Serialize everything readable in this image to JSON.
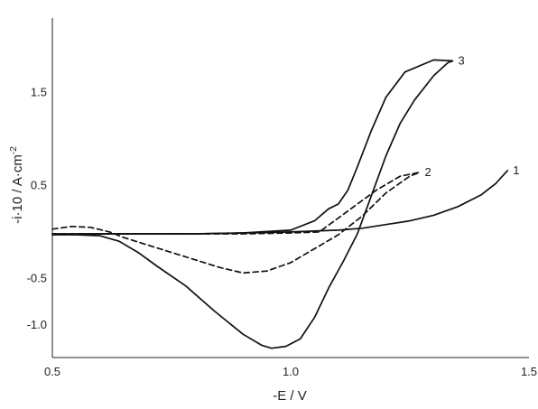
{
  "chart_data": {
    "type": "line",
    "title": "",
    "xlabel": "-E / V",
    "ylabel": "-i·10 / A·cm",
    "ylabel_superscript": "-2",
    "xlim": [
      0.5,
      1.5
    ],
    "ylim": [
      -1.35,
      2.3
    ],
    "x_ticks": [
      0.5,
      1.0,
      1.5
    ],
    "x_tick_labels": [
      "0.5",
      "1.0",
      "1.5"
    ],
    "y_ticks": [
      1.5,
      0.5,
      -0.5,
      -1.0
    ],
    "y_tick_labels": [
      "1.5",
      "0.5",
      "-0.5",
      "-1.0"
    ],
    "grid": false,
    "legend": "none",
    "series": [
      {
        "name": "1",
        "style": "solid",
        "x": [
          0.5,
          0.6,
          0.7,
          0.8,
          0.9,
          1.0,
          1.1,
          1.15,
          1.2,
          1.25,
          1.3,
          1.35,
          1.4,
          1.43,
          1.455
        ],
        "y": [
          -0.02,
          -0.02,
          -0.02,
          -0.02,
          -0.01,
          0.0,
          0.02,
          0.04,
          0.08,
          0.12,
          0.18,
          0.27,
          0.4,
          0.52,
          0.66
        ]
      },
      {
        "name": "2",
        "style": "dashed",
        "x": [
          0.5,
          0.54,
          0.58,
          0.62,
          0.65,
          0.7,
          0.75,
          0.8,
          0.85,
          0.9,
          0.95,
          1.0,
          1.05,
          1.1,
          1.15,
          1.2,
          1.25,
          1.27,
          1.23,
          1.18,
          1.14,
          1.1,
          1.06,
          1.0,
          0.9,
          0.8,
          0.7,
          0.6,
          0.5
        ],
        "y": [
          0.03,
          0.06,
          0.05,
          0.0,
          -0.06,
          -0.14,
          -0.22,
          -0.3,
          -0.38,
          -0.44,
          -0.42,
          -0.33,
          -0.18,
          -0.03,
          0.17,
          0.42,
          0.6,
          0.64,
          0.6,
          0.45,
          0.3,
          0.15,
          0.0,
          -0.01,
          -0.02,
          -0.02,
          -0.02,
          -0.02,
          -0.02
        ]
      },
      {
        "name": "3",
        "style": "solid",
        "x": [
          0.5,
          0.55,
          0.6,
          0.64,
          0.68,
          0.72,
          0.78,
          0.84,
          0.9,
          0.94,
          0.96,
          0.99,
          1.02,
          1.05,
          1.08,
          1.11,
          1.14,
          1.17,
          1.2,
          1.23,
          1.26,
          1.3,
          1.33,
          1.34,
          1.3,
          1.24,
          1.2,
          1.17,
          1.14,
          1.12,
          1.1,
          1.08,
          1.05,
          1.0,
          0.9,
          0.8,
          0.7,
          0.6,
          0.5
        ],
        "y": [
          -0.03,
          -0.03,
          -0.04,
          -0.1,
          -0.22,
          -0.37,
          -0.58,
          -0.85,
          -1.1,
          -1.22,
          -1.25,
          -1.23,
          -1.15,
          -0.92,
          -0.6,
          -0.32,
          -0.02,
          0.4,
          0.82,
          1.17,
          1.42,
          1.68,
          1.82,
          1.84,
          1.85,
          1.72,
          1.45,
          1.1,
          0.7,
          0.45,
          0.3,
          0.25,
          0.12,
          0.02,
          -0.01,
          -0.02,
          -0.02,
          -0.02,
          -0.03
        ]
      }
    ]
  }
}
